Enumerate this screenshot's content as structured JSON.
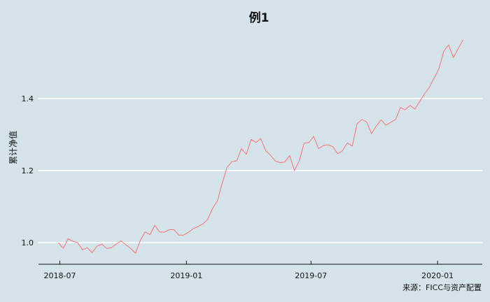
{
  "chart_data": {
    "type": "line",
    "title": "例1",
    "xlabel": "",
    "ylabel": "累计净值",
    "caption": "来源：FICC与资产配置",
    "xlim": [
      "2018-05-31",
      "2020-03-06"
    ],
    "ylim": [
      0.94,
      1.6
    ],
    "x_ticks": [
      "2018-07",
      "2019-01",
      "2019-07",
      "2020-01"
    ],
    "y_ticks": [
      1.0,
      1.2,
      1.4
    ],
    "y_tick_labels": [
      "1.0",
      "1.2",
      "1.4"
    ],
    "grid": "horizontal major",
    "colors": {
      "background": "#d5e3ea",
      "line": "#ff6666",
      "grid": "#ffffff"
    },
    "series": [
      {
        "x": [
          "2018-06-29",
          "2018-07-06",
          "2018-07-13",
          "2018-07-20",
          "2018-07-27",
          "2018-08-03",
          "2018-08-10",
          "2018-08-17",
          "2018-08-24",
          "2018-08-31",
          "2018-09-07",
          "2018-09-14",
          "2018-09-21",
          "2018-09-28",
          "2018-10-05",
          "2018-10-12",
          "2018-10-19",
          "2018-10-26",
          "2018-11-02",
          "2018-11-09",
          "2018-11-16",
          "2018-11-23",
          "2018-11-30",
          "2018-12-07",
          "2018-12-14",
          "2018-12-21",
          "2018-12-28",
          "2019-01-04",
          "2019-01-11",
          "2019-01-18",
          "2019-01-25",
          "2019-02-01",
          "2019-02-08",
          "2019-02-15",
          "2019-02-22",
          "2019-03-01",
          "2019-03-08",
          "2019-03-15",
          "2019-03-22",
          "2019-03-29",
          "2019-04-05",
          "2019-04-12",
          "2019-04-19",
          "2019-04-26",
          "2019-05-03",
          "2019-05-10",
          "2019-05-17",
          "2019-05-24",
          "2019-05-31",
          "2019-06-07",
          "2019-06-14",
          "2019-06-21",
          "2019-06-28",
          "2019-07-05",
          "2019-07-12",
          "2019-07-19",
          "2019-07-26",
          "2019-08-02",
          "2019-08-09",
          "2019-08-16",
          "2019-08-23",
          "2019-08-30",
          "2019-09-06",
          "2019-09-13",
          "2019-09-20",
          "2019-09-27",
          "2019-10-04",
          "2019-10-11",
          "2019-10-18",
          "2019-10-25",
          "2019-11-01",
          "2019-11-08",
          "2019-11-15",
          "2019-11-22",
          "2019-11-29",
          "2019-12-06",
          "2019-12-13",
          "2019-12-20",
          "2019-12-27",
          "2020-01-03",
          "2020-01-10",
          "2020-01-17",
          "2020-01-24",
          "2020-01-31",
          "2020-02-07"
        ],
        "y": [
          1.0,
          0.984,
          1.011,
          1.004,
          1.0,
          0.98,
          0.986,
          0.972,
          0.99,
          0.996,
          0.984,
          0.986,
          0.996,
          1.005,
          0.994,
          0.984,
          0.971,
          1.006,
          1.03,
          1.022,
          1.048,
          1.03,
          1.029,
          1.036,
          1.036,
          1.021,
          1.021,
          1.029,
          1.039,
          1.045,
          1.052,
          1.065,
          1.095,
          1.116,
          1.165,
          1.209,
          1.225,
          1.227,
          1.261,
          1.245,
          1.287,
          1.278,
          1.289,
          1.256,
          1.243,
          1.227,
          1.222,
          1.224,
          1.242,
          1.2,
          1.227,
          1.276,
          1.278,
          1.295,
          1.261,
          1.269,
          1.272,
          1.266,
          1.247,
          1.256,
          1.277,
          1.268,
          1.33,
          1.342,
          1.335,
          1.303,
          1.324,
          1.341,
          1.326,
          1.334,
          1.342,
          1.375,
          1.369,
          1.381,
          1.371,
          1.392,
          1.413,
          1.431,
          1.457,
          1.483,
          1.532,
          1.549,
          1.514,
          1.539,
          1.563
        ]
      }
    ]
  }
}
